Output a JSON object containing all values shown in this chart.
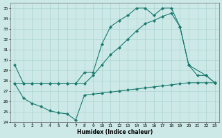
{
  "xlabel": "Humidex (Indice chaleur)",
  "bg_color": "#cce9e7",
  "grid_color": "#aad4d0",
  "line_color": "#1a7a6e",
  "xlim": [
    -0.5,
    23.5
  ],
  "ylim": [
    24,
    35.5
  ],
  "yticks": [
    24,
    25,
    26,
    27,
    28,
    29,
    30,
    31,
    32,
    33,
    34,
    35
  ],
  "xticks": [
    0,
    1,
    2,
    3,
    4,
    5,
    6,
    7,
    8,
    9,
    10,
    11,
    12,
    13,
    14,
    15,
    16,
    17,
    18,
    19,
    20,
    21,
    22,
    23
  ],
  "series": [
    {
      "x": [
        0,
        1,
        2,
        3,
        4,
        5,
        6,
        7,
        8,
        9,
        10,
        11,
        12,
        13,
        14,
        15,
        16,
        17,
        18,
        19,
        20,
        21,
        22,
        23
      ],
      "y": [
        29.5,
        27.7,
        27.7,
        27.7,
        27.7,
        27.7,
        27.7,
        27.7,
        28.8,
        28.8,
        31.5,
        33.2,
        33.8,
        34.3,
        35.0,
        35.0,
        34.3,
        35.0,
        35.0,
        33.2,
        29.5,
        28.5,
        28.5,
        27.8
      ]
    },
    {
      "x": [
        0,
        1,
        2,
        3,
        4,
        5,
        6,
        7,
        8,
        9,
        10,
        11,
        12,
        13,
        14,
        15,
        16,
        17,
        18,
        19,
        20,
        22,
        23
      ],
      "y": [
        27.7,
        27.7,
        27.7,
        27.7,
        27.7,
        27.7,
        27.7,
        27.7,
        27.7,
        28.5,
        29.5,
        30.5,
        31.2,
        32.0,
        32.8,
        33.5,
        33.8,
        34.2,
        34.5,
        33.2,
        29.5,
        28.5,
        27.8
      ]
    },
    {
      "x": [
        0,
        1,
        2,
        3,
        4,
        5,
        6,
        7,
        8,
        9,
        10,
        11,
        12,
        13,
        14,
        15,
        16,
        17,
        18,
        19,
        20,
        21,
        22,
        23
      ],
      "y": [
        27.7,
        26.3,
        25.8,
        25.5,
        25.1,
        24.9,
        24.8,
        24.2,
        26.6,
        26.7,
        26.8,
        26.9,
        27.0,
        27.1,
        27.2,
        27.3,
        27.4,
        27.5,
        27.6,
        27.7,
        27.8,
        27.8,
        27.8,
        27.8
      ]
    }
  ]
}
